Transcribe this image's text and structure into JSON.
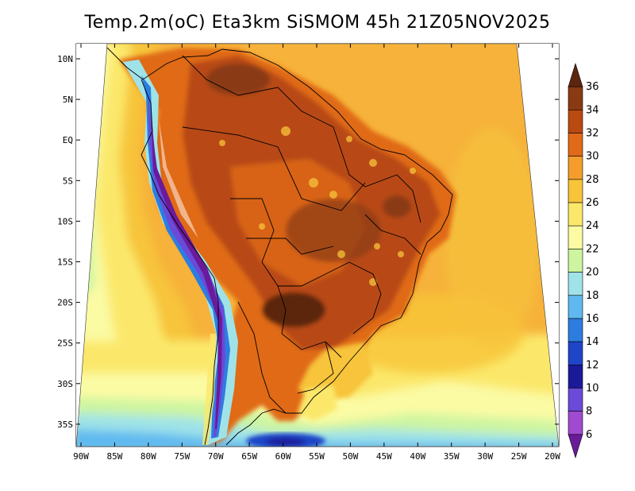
{
  "title": "Temp.2m(oC) Eta3km SiSMOM 45h 21Z05NOV2025",
  "y_axis_ticks": [
    "10N",
    "5N",
    "EQ",
    "5S",
    "10S",
    "15S",
    "20S",
    "25S",
    "30S",
    "35S"
  ],
  "x_axis_ticks": [
    "90W",
    "85W",
    "80W",
    "75W",
    "70W",
    "65W",
    "60W",
    "55W",
    "50W",
    "45W",
    "40W",
    "35W",
    "30W",
    "25W",
    "20W"
  ],
  "colorbar": {
    "labels": [
      "36",
      "34",
      "32",
      "30",
      "28",
      "26",
      "24",
      "22",
      "20",
      "18",
      "16",
      "14",
      "12",
      "10",
      "8",
      "6"
    ],
    "colors": [
      "#5c2510",
      "#8a3a12",
      "#b84a12",
      "#e06a18",
      "#f49d2c",
      "#f7c43a",
      "#fbe86a",
      "#fbfba4",
      "#cdf5a0",
      "#9fe3e8",
      "#5fb9f0",
      "#2d7de0",
      "#1f45c8",
      "#1a1a99",
      "#6a4ad8",
      "#a04ad0",
      "#6a1a9a"
    ]
  },
  "chart_data": {
    "type": "heatmap",
    "title": "Temp.2m(oC) Eta3km SiSMOM 45h 21Z05NOV2025",
    "variable": "2 m air temperature",
    "units": "oC",
    "model": "Eta3km SiSMOM",
    "forecast_hour": "45h",
    "valid_time": "21Z05NOV2025",
    "lon_range": [
      -90,
      -20
    ],
    "lat_range": [
      -37,
      11
    ],
    "colorbar_levels": [
      6,
      8,
      10,
      12,
      14,
      16,
      18,
      20,
      22,
      24,
      26,
      28,
      30,
      32,
      34,
      36
    ],
    "region": "South America"
  }
}
